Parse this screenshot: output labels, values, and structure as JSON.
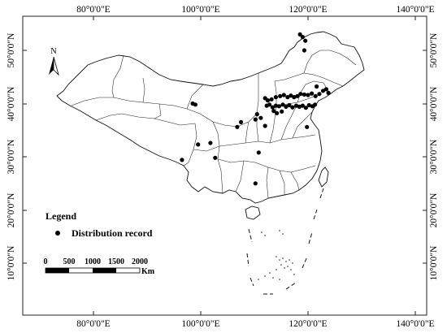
{
  "map": {
    "top_ticks": [
      "80°0'0\"E",
      "100°0'0\"E",
      "120°0'0\"E",
      "140°0'0\"E"
    ],
    "bottom_ticks": [
      "80°0'0\"E",
      "100°0'0\"E",
      "120°0'0\"E",
      "140°0'0\"E"
    ],
    "left_ticks": [
      "50°0'0\"N",
      "40°0'0\"N",
      "30°0'0\"N",
      "20°0'0\"N",
      "10°0'0\"N"
    ],
    "right_ticks": [
      "50°0'0\"N",
      "40°0'0\"N",
      "30°0'0\"N",
      "20°0'0\"N",
      "10°0'0\"N"
    ]
  },
  "north_arrow": {
    "label": "N"
  },
  "legend": {
    "title": "Legend",
    "item_label": "Distribution record"
  },
  "scale_bar": {
    "labels": [
      "0",
      "500",
      "1000",
      "1500",
      "2000"
    ],
    "unit": "Km"
  },
  "records": [
    [
      118.5,
      53.0
    ],
    [
      119.0,
      52.5
    ],
    [
      119.5,
      51.8
    ],
    [
      119.3,
      50.0
    ],
    [
      98.5,
      40.0
    ],
    [
      99.0,
      39.8
    ],
    [
      112.0,
      41.0
    ],
    [
      112.5,
      40.6
    ],
    [
      113.2,
      40.8
    ],
    [
      114.0,
      41.2
    ],
    [
      114.8,
      41.4
    ],
    [
      115.5,
      41.6
    ],
    [
      116.2,
      41.2
    ],
    [
      116.8,
      41.5
    ],
    [
      117.4,
      41.2
    ],
    [
      118.0,
      41.4
    ],
    [
      118.6,
      41.8
    ],
    [
      119.3,
      41.7
    ],
    [
      120.0,
      41.6
    ],
    [
      120.7,
      41.9
    ],
    [
      121.4,
      41.4
    ],
    [
      122.1,
      41.8
    ],
    [
      122.8,
      42.4
    ],
    [
      123.4,
      42.7
    ],
    [
      123.8,
      42.0
    ],
    [
      121.6,
      43.2
    ],
    [
      112.3,
      39.6
    ],
    [
      112.8,
      39.8
    ],
    [
      113.4,
      39.3
    ],
    [
      114.0,
      39.6
    ],
    [
      114.6,
      39.5
    ],
    [
      115.3,
      39.8
    ],
    [
      115.9,
      39.4
    ],
    [
      116.5,
      39.7
    ],
    [
      117.1,
      39.3
    ],
    [
      117.8,
      39.6
    ],
    [
      118.4,
      39.4
    ],
    [
      119.0,
      39.6
    ],
    [
      119.6,
      39.2
    ],
    [
      120.2,
      39.7
    ],
    [
      120.8,
      39.5
    ],
    [
      121.3,
      39.8
    ],
    [
      113.6,
      38.6
    ],
    [
      114.2,
      38.2
    ],
    [
      115.1,
      38.5
    ],
    [
      110.5,
      38.0
    ],
    [
      110.2,
      37.0
    ],
    [
      111.2,
      37.3
    ],
    [
      112.0,
      35.8
    ],
    [
      119.8,
      35.6
    ],
    [
      107.5,
      36.5
    ],
    [
      106.8,
      35.6
    ],
    [
      101.8,
      32.6
    ],
    [
      99.5,
      32.3
    ],
    [
      102.7,
      29.8
    ],
    [
      96.5,
      29.4
    ],
    [
      110.8,
      30.8
    ],
    [
      110.2,
      25.0
    ]
  ]
}
